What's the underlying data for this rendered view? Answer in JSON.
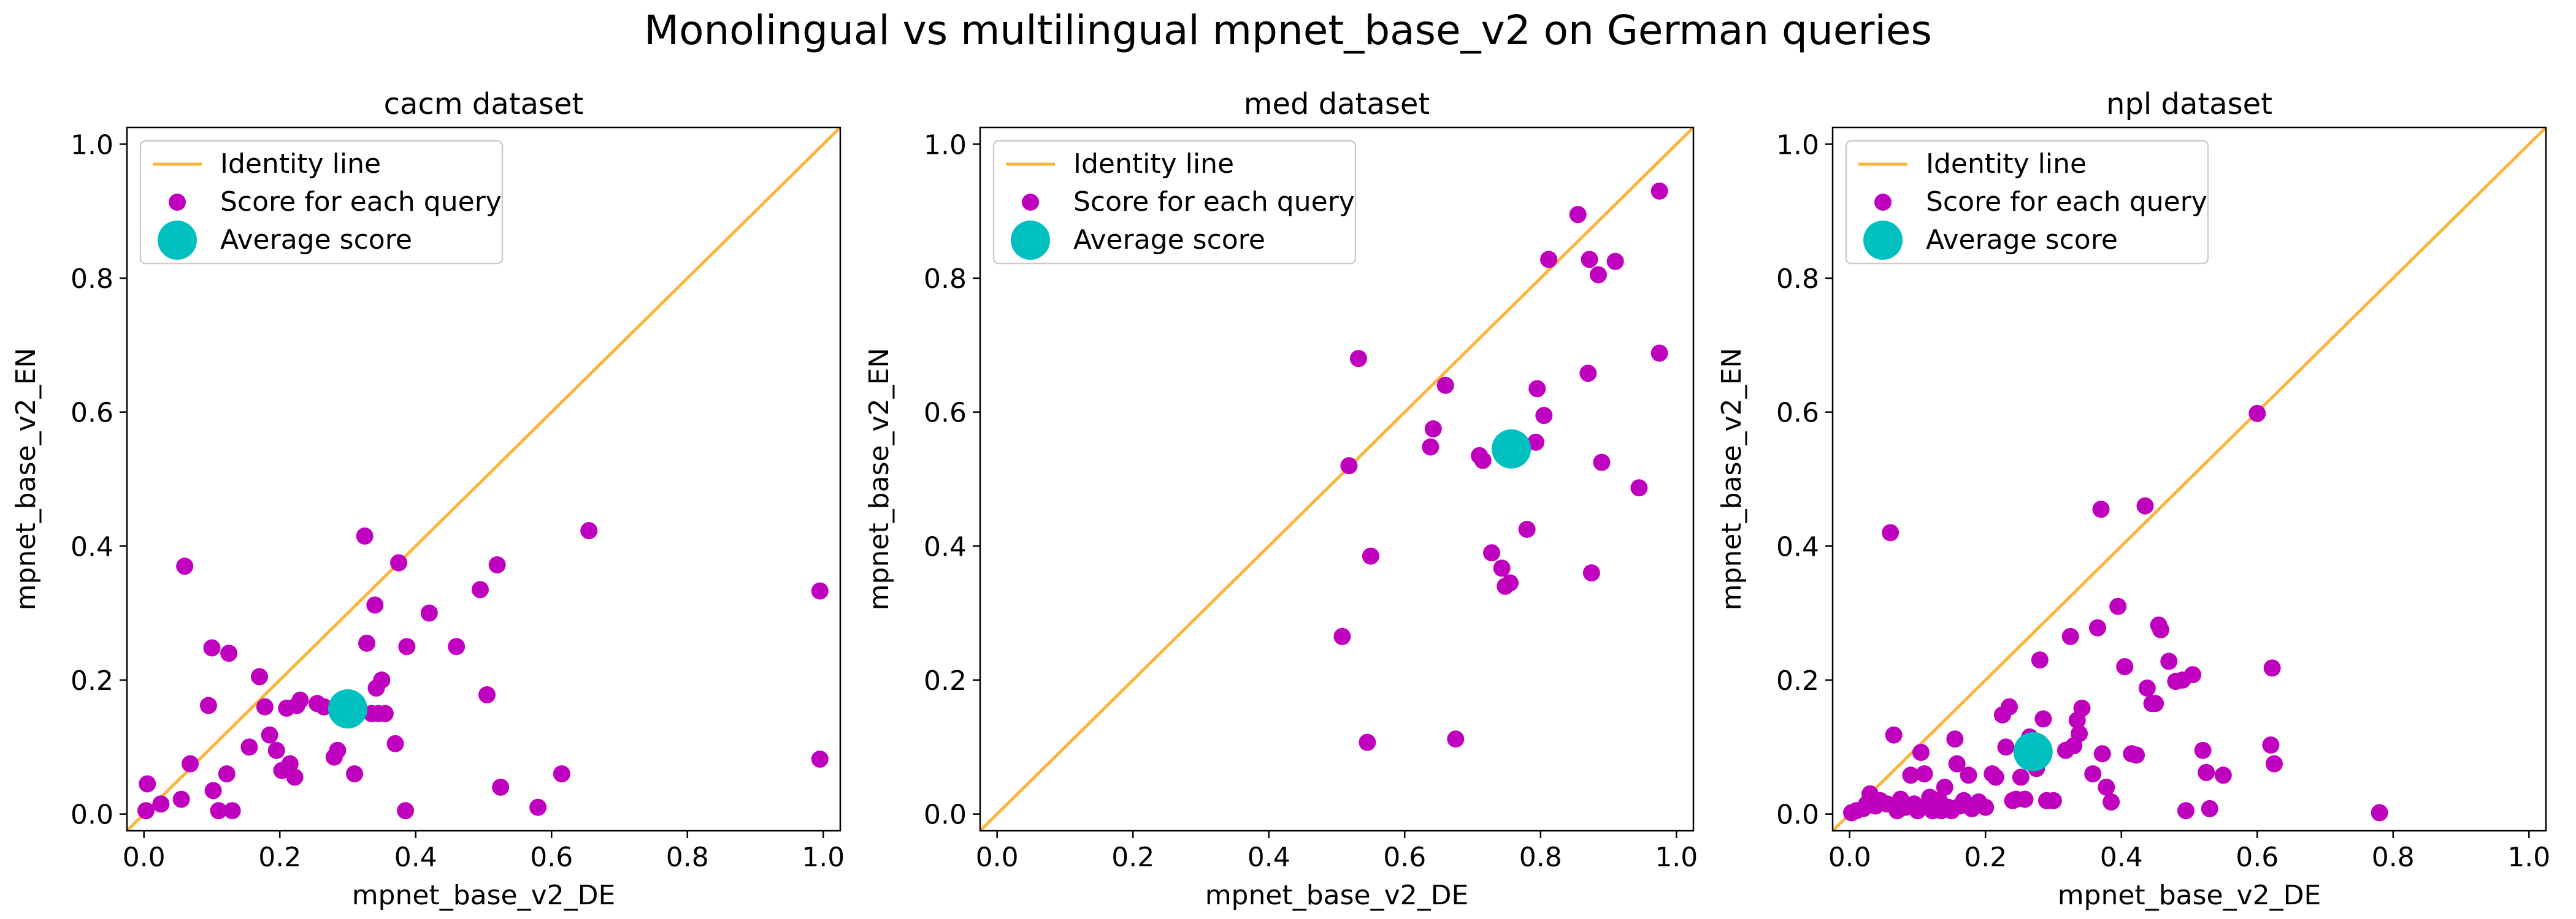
{
  "figure": {
    "title": "Monolingual vs multilingual mpnet_base_v2 on German queries"
  },
  "colors": {
    "identity": "#fbb43c",
    "points": "#bf00bf",
    "average": "#00bfbf"
  },
  "chart_data": [
    {
      "type": "scatter",
      "title": "cacm dataset",
      "xlabel": "mpnet_base_v2_DE",
      "ylabel": "mpnet_base_v2_EN",
      "xlim": [
        -0.025,
        1.025
      ],
      "ylim": [
        -0.025,
        1.025
      ],
      "xticks": [
        "0.0",
        "0.2",
        "0.4",
        "0.6",
        "0.8",
        "1.0"
      ],
      "yticks": [
        "0.0",
        "0.2",
        "0.4",
        "0.6",
        "0.8",
        "1.0"
      ],
      "grid": false,
      "legend_position": "upper-left",
      "legend": [
        "Identity line",
        "Score for each query",
        "Average score"
      ],
      "identity_line": [
        [
          -0.025,
          -0.025
        ],
        [
          1.025,
          1.025
        ]
      ],
      "average": {
        "x": 0.3,
        "y": 0.157
      },
      "points": [
        [
          0.003,
          0.005
        ],
        [
          0.005,
          0.045
        ],
        [
          0.025,
          0.015
        ],
        [
          0.055,
          0.022
        ],
        [
          0.06,
          0.37
        ],
        [
          0.068,
          0.075
        ],
        [
          0.095,
          0.162
        ],
        [
          0.1,
          0.248
        ],
        [
          0.102,
          0.035
        ],
        [
          0.11,
          0.005
        ],
        [
          0.122,
          0.06
        ],
        [
          0.125,
          0.24
        ],
        [
          0.13,
          0.005
        ],
        [
          0.155,
          0.1
        ],
        [
          0.17,
          0.205
        ],
        [
          0.178,
          0.16
        ],
        [
          0.185,
          0.118
        ],
        [
          0.195,
          0.095
        ],
        [
          0.203,
          0.065
        ],
        [
          0.21,
          0.158
        ],
        [
          0.215,
          0.075
        ],
        [
          0.222,
          0.055
        ],
        [
          0.225,
          0.162
        ],
        [
          0.23,
          0.17
        ],
        [
          0.255,
          0.165
        ],
        [
          0.265,
          0.16
        ],
        [
          0.28,
          0.085
        ],
        [
          0.285,
          0.095
        ],
        [
          0.3,
          0.158
        ],
        [
          0.31,
          0.06
        ],
        [
          0.325,
          0.415
        ],
        [
          0.328,
          0.255
        ],
        [
          0.335,
          0.15
        ],
        [
          0.34,
          0.312
        ],
        [
          0.342,
          0.188
        ],
        [
          0.345,
          0.15
        ],
        [
          0.35,
          0.2
        ],
        [
          0.355,
          0.15
        ],
        [
          0.37,
          0.105
        ],
        [
          0.375,
          0.375
        ],
        [
          0.385,
          0.005
        ],
        [
          0.387,
          0.25
        ],
        [
          0.42,
          0.3
        ],
        [
          0.46,
          0.25
        ],
        [
          0.495,
          0.335
        ],
        [
          0.505,
          0.178
        ],
        [
          0.52,
          0.372
        ],
        [
          0.525,
          0.04
        ],
        [
          0.58,
          0.01
        ],
        [
          0.615,
          0.06
        ],
        [
          0.655,
          0.423
        ],
        [
          0.995,
          0.333
        ],
        [
          0.995,
          0.082
        ]
      ]
    },
    {
      "type": "scatter",
      "title": "med dataset",
      "xlabel": "mpnet_base_v2_DE",
      "ylabel": "mpnet_base_v2_EN",
      "xlim": [
        -0.025,
        1.025
      ],
      "ylim": [
        -0.025,
        1.025
      ],
      "xticks": [
        "0.0",
        "0.2",
        "0.4",
        "0.6",
        "0.8",
        "1.0"
      ],
      "yticks": [
        "0.0",
        "0.2",
        "0.4",
        "0.6",
        "0.8",
        "1.0"
      ],
      "grid": false,
      "legend_position": "upper-left",
      "legend": [
        "Identity line",
        "Score for each query",
        "Average score"
      ],
      "identity_line": [
        [
          -0.025,
          -0.025
        ],
        [
          1.025,
          1.025
        ]
      ],
      "average": {
        "x": 0.757,
        "y": 0.545
      },
      "points": [
        [
          0.508,
          0.265
        ],
        [
          0.518,
          0.52
        ],
        [
          0.532,
          0.68
        ],
        [
          0.545,
          0.107
        ],
        [
          0.55,
          0.385
        ],
        [
          0.638,
          0.548
        ],
        [
          0.642,
          0.575
        ],
        [
          0.66,
          0.64
        ],
        [
          0.675,
          0.112
        ],
        [
          0.71,
          0.535
        ],
        [
          0.715,
          0.528
        ],
        [
          0.728,
          0.39
        ],
        [
          0.743,
          0.367
        ],
        [
          0.748,
          0.34
        ],
        [
          0.755,
          0.345
        ],
        [
          0.78,
          0.425
        ],
        [
          0.793,
          0.555
        ],
        [
          0.795,
          0.635
        ],
        [
          0.805,
          0.595
        ],
        [
          0.812,
          0.828
        ],
        [
          0.855,
          0.895
        ],
        [
          0.87,
          0.658
        ],
        [
          0.872,
          0.828
        ],
        [
          0.875,
          0.36
        ],
        [
          0.885,
          0.805
        ],
        [
          0.89,
          0.525
        ],
        [
          0.91,
          0.825
        ],
        [
          0.945,
          0.487
        ],
        [
          0.975,
          0.688
        ],
        [
          0.975,
          0.93
        ]
      ]
    },
    {
      "type": "scatter",
      "title": "npl dataset",
      "xlabel": "mpnet_base_v2_DE",
      "ylabel": "mpnet_base_v2_EN",
      "xlim": [
        -0.025,
        1.025
      ],
      "ylim": [
        -0.025,
        1.025
      ],
      "xticks": [
        "0.0",
        "0.2",
        "0.4",
        "0.6",
        "0.8",
        "1.0"
      ],
      "yticks": [
        "0.0",
        "0.2",
        "0.4",
        "0.6",
        "0.8",
        "1.0"
      ],
      "grid": false,
      "legend_position": "upper-left",
      "legend": [
        "Identity line",
        "Score for each query",
        "Average score"
      ],
      "identity_line": [
        [
          -0.025,
          -0.025
        ],
        [
          1.025,
          1.025
        ]
      ],
      "average": {
        "x": 0.27,
        "y": 0.093
      },
      "points": [
        [
          0.003,
          0.002
        ],
        [
          0.01,
          0.005
        ],
        [
          0.02,
          0.008
        ],
        [
          0.025,
          0.015
        ],
        [
          0.03,
          0.03
        ],
        [
          0.038,
          0.012
        ],
        [
          0.045,
          0.02
        ],
        [
          0.055,
          0.015
        ],
        [
          0.06,
          0.42
        ],
        [
          0.065,
          0.118
        ],
        [
          0.07,
          0.005
        ],
        [
          0.075,
          0.022
        ],
        [
          0.082,
          0.01
        ],
        [
          0.09,
          0.058
        ],
        [
          0.095,
          0.015
        ],
        [
          0.1,
          0.005
        ],
        [
          0.105,
          0.092
        ],
        [
          0.11,
          0.06
        ],
        [
          0.112,
          0.012
        ],
        [
          0.118,
          0.025
        ],
        [
          0.122,
          0.005
        ],
        [
          0.125,
          0.01
        ],
        [
          0.132,
          0.02
        ],
        [
          0.135,
          0.005
        ],
        [
          0.14,
          0.04
        ],
        [
          0.145,
          0.01
        ],
        [
          0.15,
          0.005
        ],
        [
          0.155,
          0.112
        ],
        [
          0.158,
          0.075
        ],
        [
          0.162,
          0.012
        ],
        [
          0.168,
          0.02
        ],
        [
          0.175,
          0.058
        ],
        [
          0.18,
          0.008
        ],
        [
          0.19,
          0.018
        ],
        [
          0.2,
          0.01
        ],
        [
          0.21,
          0.06
        ],
        [
          0.215,
          0.055
        ],
        [
          0.225,
          0.148
        ],
        [
          0.23,
          0.1
        ],
        [
          0.235,
          0.16
        ],
        [
          0.24,
          0.02
        ],
        [
          0.245,
          0.022
        ],
        [
          0.252,
          0.055
        ],
        [
          0.258,
          0.022
        ],
        [
          0.265,
          0.115
        ],
        [
          0.275,
          0.068
        ],
        [
          0.28,
          0.23
        ],
        [
          0.285,
          0.142
        ],
        [
          0.29,
          0.02
        ],
        [
          0.3,
          0.02
        ],
        [
          0.318,
          0.095
        ],
        [
          0.325,
          0.265
        ],
        [
          0.33,
          0.102
        ],
        [
          0.335,
          0.14
        ],
        [
          0.338,
          0.12
        ],
        [
          0.342,
          0.158
        ],
        [
          0.358,
          0.06
        ],
        [
          0.365,
          0.278
        ],
        [
          0.37,
          0.455
        ],
        [
          0.372,
          0.09
        ],
        [
          0.378,
          0.04
        ],
        [
          0.385,
          0.018
        ],
        [
          0.395,
          0.31
        ],
        [
          0.405,
          0.22
        ],
        [
          0.415,
          0.09
        ],
        [
          0.422,
          0.088
        ],
        [
          0.435,
          0.46
        ],
        [
          0.438,
          0.188
        ],
        [
          0.445,
          0.165
        ],
        [
          0.45,
          0.165
        ],
        [
          0.455,
          0.282
        ],
        [
          0.458,
          0.275
        ],
        [
          0.47,
          0.228
        ],
        [
          0.48,
          0.198
        ],
        [
          0.49,
          0.2
        ],
        [
          0.495,
          0.005
        ],
        [
          0.505,
          0.208
        ],
        [
          0.52,
          0.095
        ],
        [
          0.525,
          0.062
        ],
        [
          0.53,
          0.008
        ],
        [
          0.55,
          0.058
        ],
        [
          0.6,
          0.598
        ],
        [
          0.62,
          0.103
        ],
        [
          0.622,
          0.218
        ],
        [
          0.625,
          0.075
        ],
        [
          0.78,
          0.002
        ]
      ]
    }
  ]
}
